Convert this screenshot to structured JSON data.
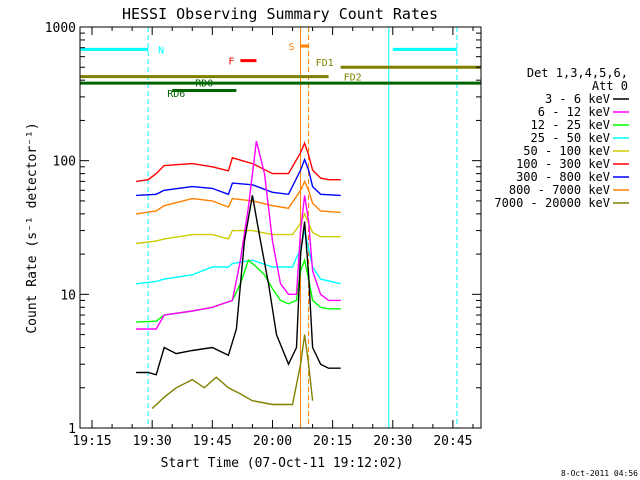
{
  "chart_data": {
    "type": "line",
    "title": "HESSI Observing Summary Count Rates",
    "xlabel": "Start Time (07-Oct-11 19:12:02)",
    "ylabel": "Count Rate (s⁻¹ detector⁻¹)",
    "yscale": "log",
    "ylim": [
      1,
      1000
    ],
    "xlim": [
      "19:12",
      "20:52"
    ],
    "x_ticks": [
      "19:15",
      "19:30",
      "19:45",
      "20:00",
      "20:15",
      "20:30",
      "20:45"
    ],
    "y_ticks": [
      "1",
      "10",
      "100",
      "1000"
    ],
    "legend_title": [
      "Det 1,3,4,5,6,",
      "Att 0"
    ],
    "legend_placement": "right",
    "timestamp": "8-Oct-2011 04:56",
    "series": [
      {
        "name": "3 - 6 keV",
        "color": "#000000",
        "x": [
          "19:26",
          "19:29",
          "19:31",
          "19:33",
          "19:36",
          "19:40",
          "19:45",
          "19:49",
          "19:51",
          "19:53",
          "19:55",
          "19:57",
          "19:59",
          "20:01",
          "20:04",
          "20:06",
          "20:07",
          "20:08",
          "20:09",
          "20:10",
          "20:12",
          "20:14",
          "20:16",
          "20:17"
        ],
        "y": [
          2.6,
          2.6,
          2.5,
          4.0,
          3.6,
          3.8,
          4.0,
          3.5,
          5.5,
          25,
          55,
          25,
          12,
          5,
          3,
          4,
          20,
          35,
          14,
          4,
          3,
          2.8,
          2.8,
          2.8
        ]
      },
      {
        "name": "6 - 12 keV",
        "color": "#ff00ff",
        "x": [
          "19:26",
          "19:31",
          "19:33",
          "19:40",
          "19:45",
          "19:50",
          "19:52",
          "19:54",
          "19:56",
          "19:58",
          "20:00",
          "20:02",
          "20:04",
          "20:06",
          "20:07",
          "20:08",
          "20:09",
          "20:10",
          "20:12",
          "20:14",
          "20:17"
        ],
        "y": [
          5.5,
          5.5,
          7.0,
          7.5,
          8.0,
          9,
          18,
          45,
          140,
          80,
          25,
          12,
          10,
          10,
          30,
          55,
          35,
          15,
          10,
          9,
          9
        ]
      },
      {
        "name": "12 - 25 keV",
        "color": "#00ff00",
        "x": [
          "19:26",
          "19:31",
          "19:33",
          "19:40",
          "19:45",
          "19:50",
          "19:52",
          "19:54",
          "19:56",
          "19:58",
          "20:00",
          "20:02",
          "20:04",
          "20:06",
          "20:07",
          "20:08",
          "20:09",
          "20:10",
          "20:12",
          "20:14",
          "20:17"
        ],
        "y": [
          6.2,
          6.3,
          7.0,
          7.5,
          8.0,
          9,
          12,
          18,
          16,
          14,
          11,
          9,
          8.5,
          9,
          15,
          18,
          13,
          9,
          8,
          7.8,
          7.8
        ]
      },
      {
        "name": "25 - 50 keV",
        "color": "#00ffff",
        "x": [
          "19:26",
          "19:31",
          "19:33",
          "19:40",
          "19:45",
          "19:49",
          "19:50",
          "19:55",
          "20:00",
          "20:05",
          "20:07",
          "20:08",
          "20:09",
          "20:10",
          "20:12",
          "20:17"
        ],
        "y": [
          12,
          12.5,
          13,
          14,
          16,
          16,
          17,
          18,
          16,
          16,
          22,
          30,
          22,
          16,
          13,
          12
        ]
      },
      {
        "name": "50 - 100 keV",
        "color": "#cccc00",
        "x": [
          "19:26",
          "19:31",
          "19:33",
          "19:40",
          "19:45",
          "19:49",
          "19:50",
          "19:55",
          "20:00",
          "20:05",
          "20:07",
          "20:08",
          "20:09",
          "20:10",
          "20:12",
          "20:17"
        ],
        "y": [
          24,
          25,
          26,
          28,
          28,
          26,
          30,
          30,
          28,
          28,
          34,
          40,
          34,
          29,
          27,
          27
        ]
      },
      {
        "name": "100 - 300 keV",
        "color": "#ff0000",
        "x": [
          "19:26",
          "19:29",
          "19:31",
          "19:33",
          "19:40",
          "19:45",
          "19:49",
          "19:50",
          "19:55",
          "20:00",
          "20:04",
          "20:07",
          "20:08",
          "20:09",
          "20:10",
          "20:12",
          "20:14",
          "20:17"
        ],
        "y": [
          70,
          72,
          80,
          92,
          95,
          90,
          84,
          105,
          95,
          80,
          80,
          115,
          135,
          110,
          85,
          74,
          72,
          72
        ]
      },
      {
        "name": "300 - 800 keV",
        "color": "#0000ff",
        "x": [
          "19:26",
          "19:31",
          "19:33",
          "19:40",
          "19:45",
          "19:49",
          "19:50",
          "19:55",
          "20:00",
          "20:04",
          "20:07",
          "20:08",
          "20:09",
          "20:10",
          "20:12",
          "20:17"
        ],
        "y": [
          55,
          56,
          60,
          64,
          62,
          56,
          68,
          66,
          58,
          56,
          85,
          102,
          85,
          64,
          56,
          55
        ]
      },
      {
        "name": "800 - 7000 keV",
        "color": "#ff8000",
        "x": [
          "19:26",
          "19:31",
          "19:33",
          "19:40",
          "19:45",
          "19:49",
          "19:50",
          "19:55",
          "20:00",
          "20:04",
          "20:07",
          "20:08",
          "20:09",
          "20:10",
          "20:12",
          "20:17"
        ],
        "y": [
          40,
          42,
          46,
          52,
          50,
          45,
          52,
          50,
          46,
          44,
          60,
          70,
          60,
          48,
          42,
          41
        ]
      },
      {
        "name": "7000 - 20000 keV",
        "color": "#808000",
        "x": [
          "19:30",
          "19:33",
          "19:36",
          "19:40",
          "19:43",
          "19:46",
          "19:49",
          "19:52",
          "19:55",
          "20:00",
          "20:05",
          "20:07",
          "20:08",
          "20:09",
          "20:10"
        ],
        "y": [
          1.4,
          1.7,
          2.0,
          2.3,
          2.0,
          2.4,
          2.0,
          1.8,
          1.6,
          1.5,
          1.5,
          3.0,
          5.0,
          3.0,
          1.6
        ]
      }
    ],
    "flags": [
      {
        "label": "N",
        "color": "#00ffff",
        "segments": [
          [
            "19:12",
            "19:29"
          ],
          [
            "20:30",
            "20:46"
          ]
        ],
        "value": 680
      },
      {
        "label": "F",
        "color": "#ff0000",
        "segments": [
          [
            "19:52",
            "19:56"
          ]
        ],
        "value": 560
      },
      {
        "label": "S",
        "color": "#ff8000",
        "segments": [
          [
            "20:07",
            "20:09"
          ]
        ],
        "value": 720
      },
      {
        "label": "FD1",
        "color": "#808000",
        "segments": [
          [
            "20:17",
            "20:52"
          ]
        ],
        "value": 500
      },
      {
        "label": "FD2",
        "color": "#808000",
        "segments": [
          [
            "19:12",
            "20:14"
          ]
        ],
        "value": 425
      },
      {
        "label": "RD0",
        "color": "#006400",
        "segments": [
          [
            "19:35",
            "19:51"
          ]
        ],
        "value": 335
      },
      {
        "label": "RD6",
        "color": "#006400",
        "segments": [
          [
            "19:12",
            "20:52"
          ]
        ],
        "value": 380
      }
    ],
    "vertical_markers": [
      {
        "time": "19:29",
        "style": "dashed",
        "color": "#00ffff"
      },
      {
        "time": "20:29",
        "style": "solid",
        "color": "#00ffff"
      },
      {
        "time": "20:46",
        "style": "dashed",
        "color": "#00ffff"
      },
      {
        "time": "20:07",
        "style": "solid",
        "color": "#ff8000"
      },
      {
        "time": "20:09",
        "style": "dashed",
        "color": "#ff8000"
      }
    ]
  }
}
